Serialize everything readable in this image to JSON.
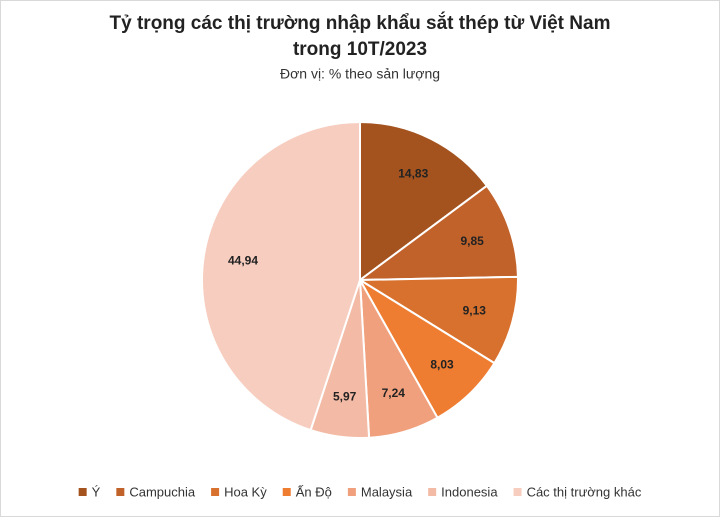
{
  "chart_data": {
    "type": "pie",
    "title": [
      "Tỷ trọng các thị trường nhập khẩu sắt thép từ Việt Nam",
      "trong 10T/2023"
    ],
    "subtitle": "Đơn vị: % theo sản lượng",
    "categories": [
      "Ý",
      "Campuchia",
      "Hoa Kỳ",
      "Ấn Độ",
      "Malaysia",
      "Indonesia",
      "Các thị trường khác"
    ],
    "values": [
      14.83,
      9.85,
      9.13,
      8.03,
      7.24,
      5.97,
      44.94
    ],
    "value_labels": [
      "14,83",
      "9,85",
      "9,13",
      "8,03",
      "7,24",
      "5,97",
      "44,94"
    ],
    "colors": [
      "#A4531F",
      "#C1622A",
      "#D8712D",
      "#EE7D31",
      "#F0A07C",
      "#F3BBA5",
      "#F6CDBF"
    ],
    "legend": "bottom"
  }
}
